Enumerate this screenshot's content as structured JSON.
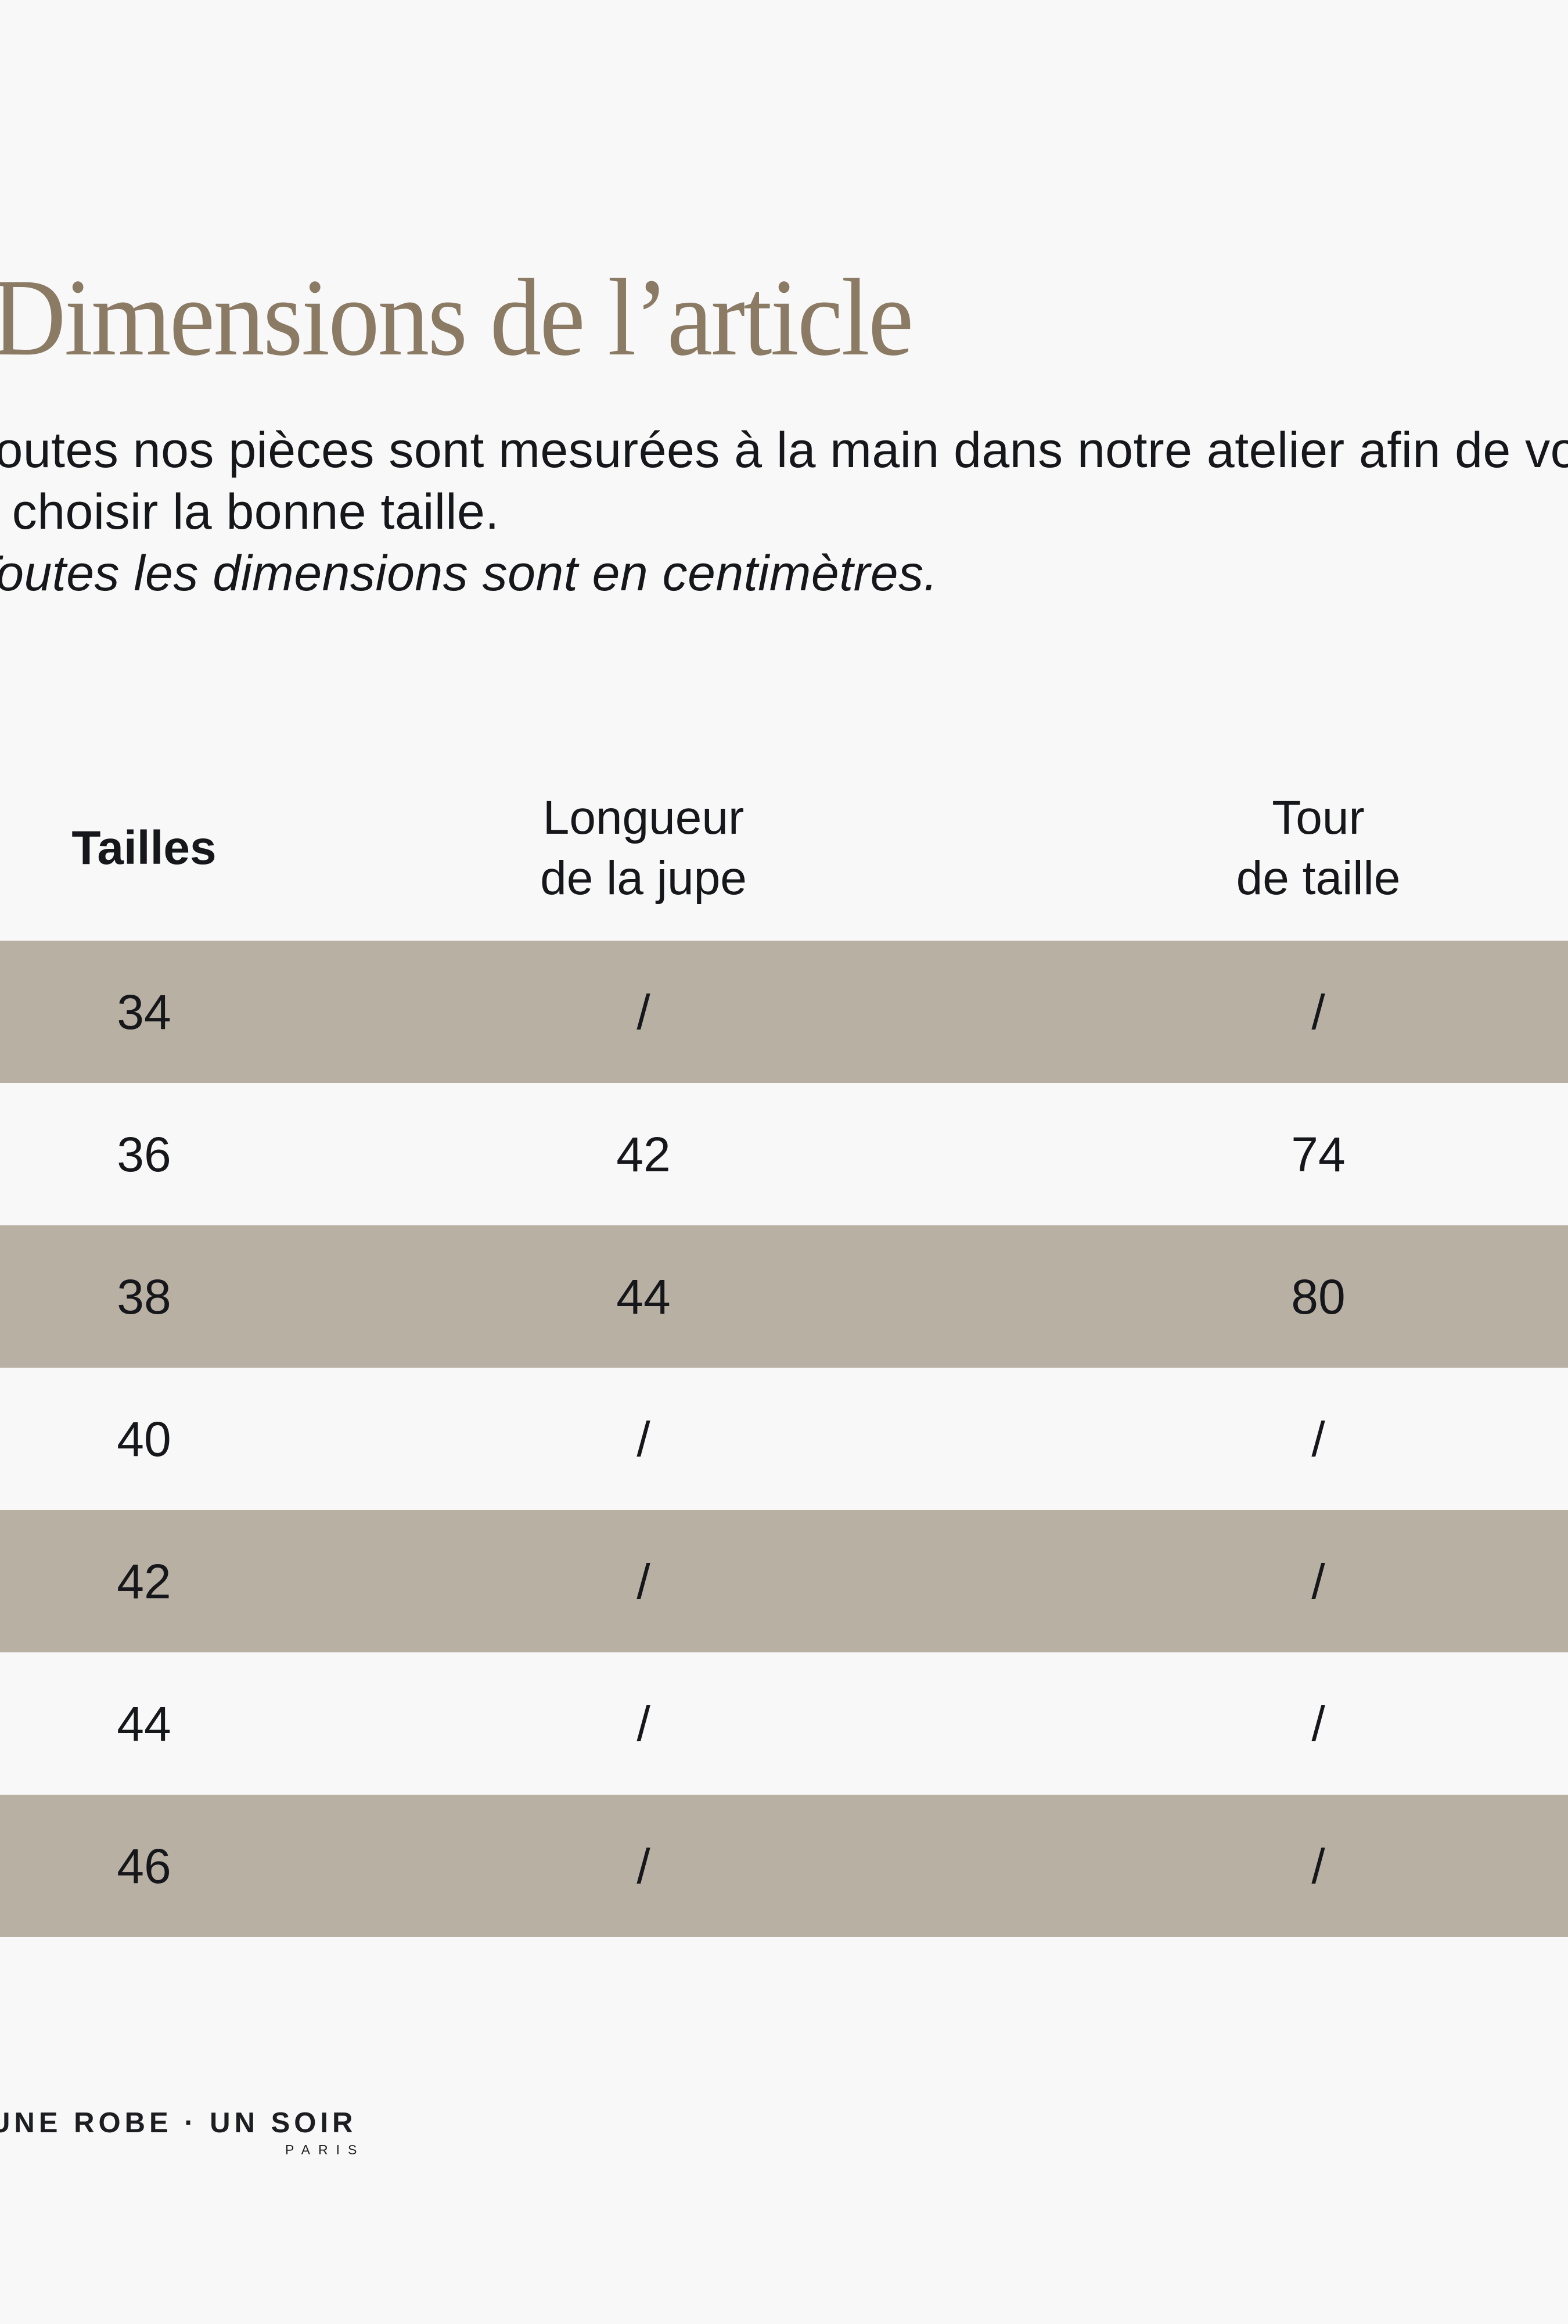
{
  "section": {
    "title": "Dimensions de l’article",
    "intro": {
      "line1": "Toutes nos pièces sont mesurées à la main dans notre atelier afin de vous aider",
      "line2": "à choisir la bonne taille.",
      "note": "Toutes les dimensions sont en centimètres."
    }
  },
  "size_table": {
    "columns": [
      {
        "id": "tailles",
        "line1": "Tailles",
        "line2": ""
      },
      {
        "id": "longueur_jupe",
        "line1": "Longueur",
        "line2": "de la jupe"
      },
      {
        "id": "tour_taille",
        "line1": "Tour",
        "line2": "de taille"
      }
    ],
    "rows": [
      {
        "taille": "34",
        "longueur": "/",
        "tour": "/",
        "shaded": true
      },
      {
        "taille": "36",
        "longueur": "42",
        "tour": "74",
        "shaded": false
      },
      {
        "taille": "38",
        "longueur": "44",
        "tour": "80",
        "shaded": true
      },
      {
        "taille": "40",
        "longueur": "/",
        "tour": "/",
        "shaded": false
      },
      {
        "taille": "42",
        "longueur": "/",
        "tour": "/",
        "shaded": true
      },
      {
        "taille": "44",
        "longueur": "/",
        "tour": "/",
        "shaded": false
      },
      {
        "taille": "46",
        "longueur": "/",
        "tour": "/",
        "shaded": true
      }
    ]
  },
  "footer": {
    "brand": "UNE ROBE · UN SOIR",
    "brand_sub": "PARIS"
  },
  "colors": {
    "background": "#f8f8f8",
    "shaded_row": "#b9b0a4",
    "title": "#8b7b65",
    "text": "#16171b"
  }
}
